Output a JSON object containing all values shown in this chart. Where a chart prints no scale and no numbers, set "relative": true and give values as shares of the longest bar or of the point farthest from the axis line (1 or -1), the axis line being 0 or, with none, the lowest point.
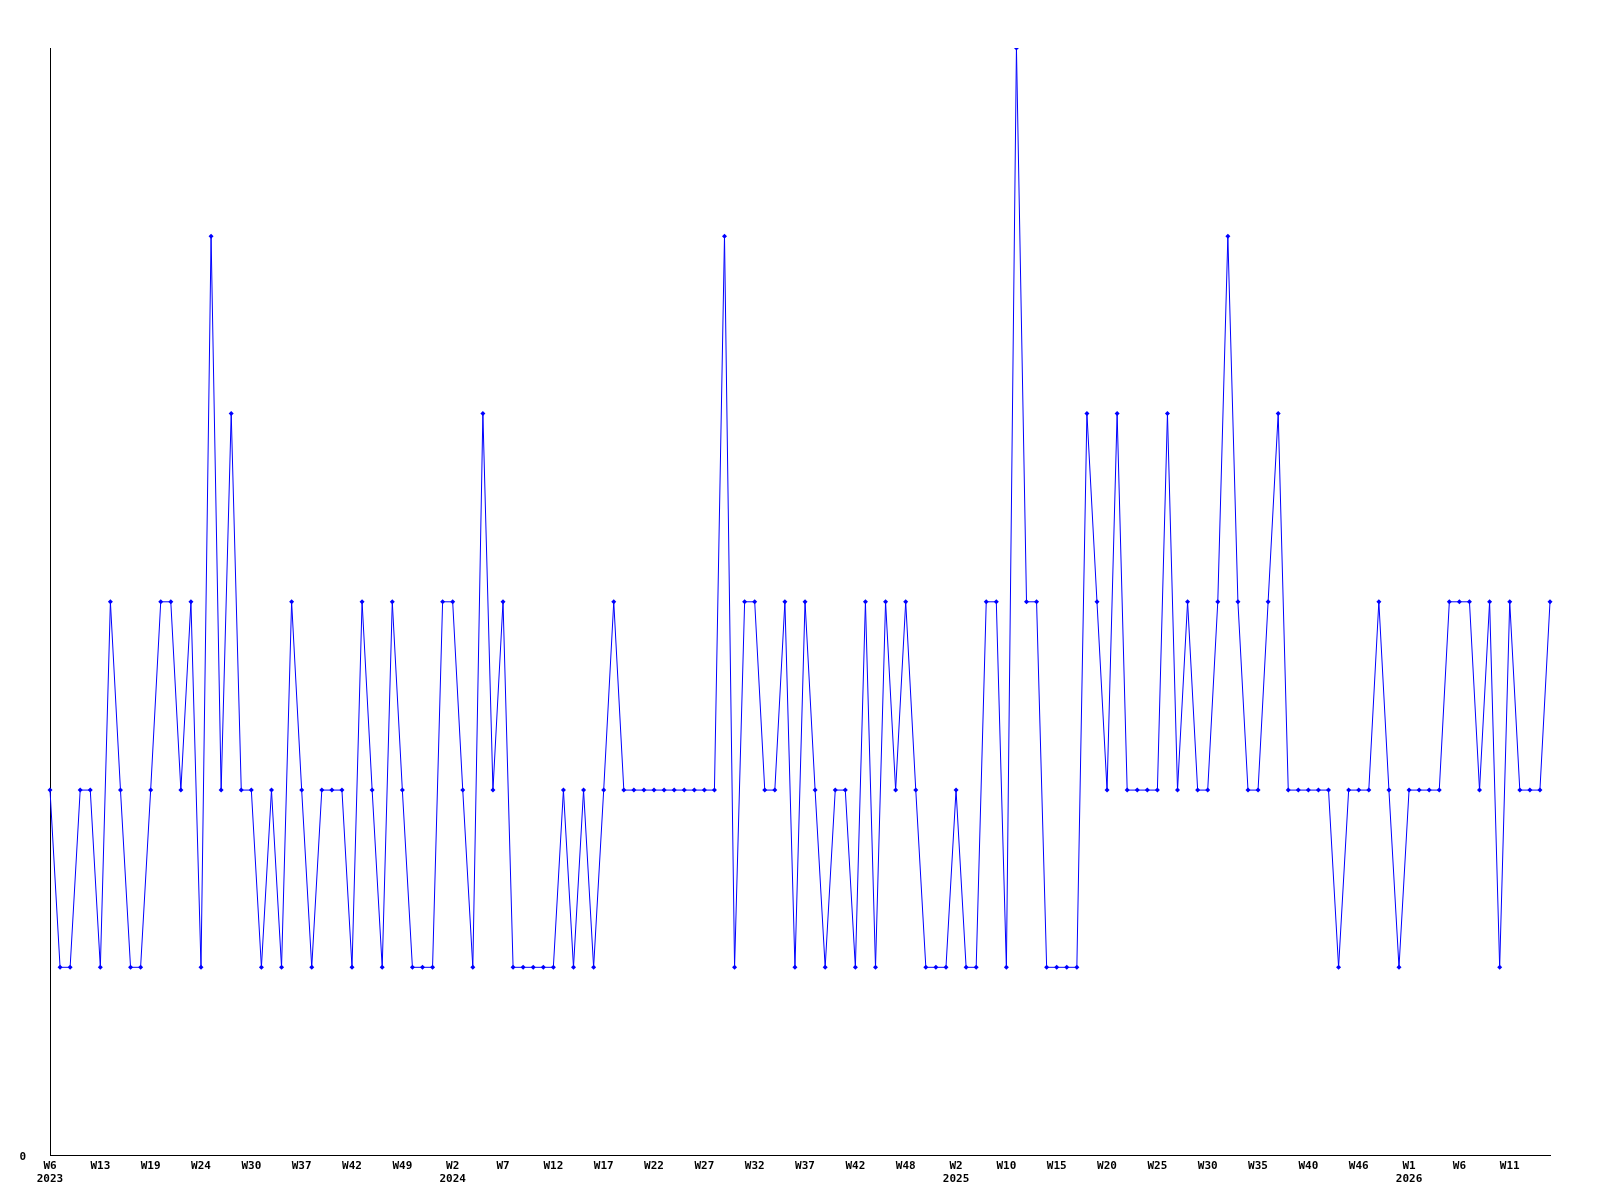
{
  "chart_data": {
    "type": "line",
    "relative": true,
    "marker": "diamond",
    "grid": false,
    "legend": false,
    "annotations": [
      "0"
    ],
    "categories": [
      "W6\n2023",
      null,
      null,
      null,
      null,
      "W13",
      null,
      null,
      null,
      null,
      "W19",
      null,
      null,
      null,
      null,
      "W24",
      null,
      null,
      null,
      null,
      "W30",
      null,
      null,
      null,
      null,
      "W37",
      null,
      null,
      null,
      null,
      "W42",
      null,
      null,
      null,
      null,
      "W49",
      null,
      null,
      null,
      null,
      "W2\n2024",
      null,
      null,
      null,
      null,
      "W7",
      null,
      null,
      null,
      null,
      "W12",
      null,
      null,
      null,
      null,
      "W17",
      null,
      null,
      null,
      null,
      "W22",
      null,
      null,
      null,
      null,
      "W27",
      null,
      null,
      null,
      null,
      "W32",
      null,
      null,
      null,
      null,
      "W37",
      null,
      null,
      null,
      null,
      "W42",
      null,
      null,
      null,
      null,
      "W48",
      null,
      null,
      null,
      null,
      "W2\n2025",
      null,
      null,
      null,
      null,
      "W10",
      null,
      null,
      null,
      null,
      "W15",
      null,
      null,
      null,
      null,
      "W20",
      null,
      null,
      null,
      null,
      "W25",
      null,
      null,
      null,
      null,
      "W30",
      null,
      null,
      null,
      null,
      "W35",
      null,
      null,
      null,
      null,
      "W40",
      null,
      null,
      null,
      null,
      "W46",
      null,
      null,
      null,
      null,
      "W1\n2026",
      null,
      null,
      null,
      null,
      "W6",
      null,
      null,
      null,
      null,
      "W11",
      null,
      null,
      null,
      null
    ],
    "series": [
      {
        "color": "#0000ff",
        "values": [
          0.33,
          0.17,
          0.17,
          0.33,
          0.33,
          0.17,
          0.5,
          0.33,
          0.17,
          0.17,
          0.33,
          0.5,
          0.5,
          0.33,
          0.5,
          0.17,
          0.83,
          0.33,
          0.67,
          0.33,
          0.33,
          0.17,
          0.33,
          0.17,
          0.5,
          0.33,
          0.17,
          0.33,
          0.33,
          0.33,
          0.17,
          0.5,
          0.33,
          0.17,
          0.5,
          0.33,
          0.17,
          0.17,
          0.17,
          0.5,
          0.5,
          0.33,
          0.17,
          0.67,
          0.33,
          0.5,
          0.17,
          0.17,
          0.17,
          0.17,
          0.17,
          0.33,
          0.17,
          0.33,
          0.17,
          0.33,
          0.5,
          0.33,
          0.33,
          0.33,
          0.33,
          0.33,
          0.33,
          0.33,
          0.33,
          0.33,
          0.33,
          0.83,
          0.17,
          0.5,
          0.5,
          0.33,
          0.33,
          0.5,
          0.17,
          0.5,
          0.33,
          0.17,
          0.33,
          0.33,
          0.17,
          0.5,
          0.17,
          0.5,
          0.33,
          0.5,
          0.33,
          0.17,
          0.17,
          0.17,
          0.33,
          0.17,
          0.17,
          0.5,
          0.5,
          0.17,
          1,
          0.5,
          0.5,
          0.17,
          0.17,
          0.17,
          0.17,
          0.67,
          0.5,
          0.33,
          0.67,
          0.33,
          0.33,
          0.33,
          0.33,
          0.67,
          0.33,
          0.5,
          0.33,
          0.33,
          0.5,
          0.83,
          0.5,
          0.33,
          0.33,
          0.5,
          0.67,
          0.33,
          0.33,
          0.33,
          0.33,
          0.33,
          0.17,
          0.33,
          0.33,
          0.33,
          0.5,
          0.33,
          0.17,
          0.33,
          0.33,
          0.33,
          0.33,
          0.5,
          0.5,
          0.5,
          0.33,
          0.5,
          0.17,
          0.5,
          0.33,
          0.33,
          0.33,
          0.5
        ]
      }
    ]
  }
}
